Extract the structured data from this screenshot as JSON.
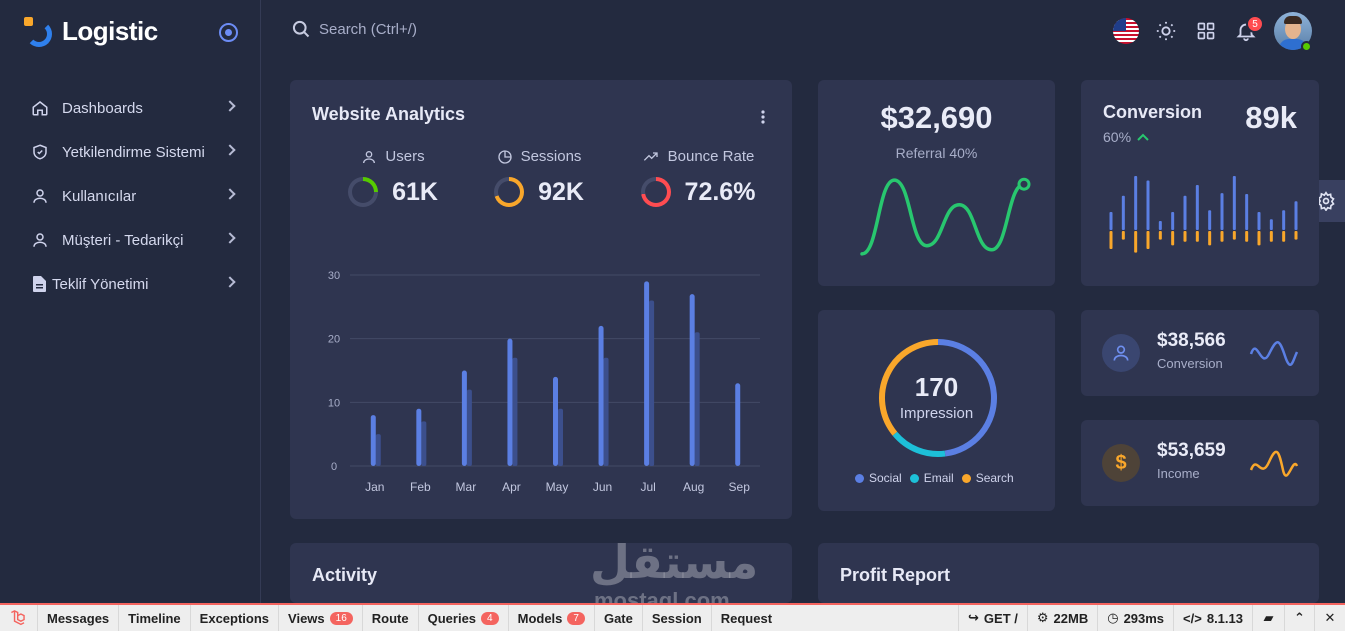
{
  "brand": {
    "name": "Logistic"
  },
  "sidebar": {
    "items": [
      {
        "label": "Dashboards",
        "icon": "home-icon"
      },
      {
        "label": "Yetkilendirme Sistemi",
        "icon": "shield-icon"
      },
      {
        "label": "Kullanıcılar",
        "icon": "user-icon"
      },
      {
        "label": "Müşteri - Tedarikçi",
        "icon": "user-icon"
      },
      {
        "label": "Teklif Yönetimi",
        "icon": "document-icon"
      }
    ]
  },
  "search": {
    "placeholder": "Search (Ctrl+/)"
  },
  "header": {
    "notification_count": "5"
  },
  "analytics": {
    "title": "Website Analytics",
    "stats": [
      {
        "label": "Users",
        "value": "61K",
        "color": "#56ca00",
        "percent": 0.25
      },
      {
        "label": "Sessions",
        "value": "92K",
        "color": "#f9a72b",
        "percent": 0.7
      },
      {
        "label": "Bounce Rate",
        "value": "72.6%",
        "color": "#ff4c51",
        "percent": 0.726
      }
    ]
  },
  "chart_data": [
    {
      "type": "bar",
      "categories": [
        "Jan",
        "Feb",
        "Mar",
        "Apr",
        "May",
        "Jun",
        "Jul",
        "Aug",
        "Sep"
      ],
      "series": [
        {
          "values": [
            8,
            9,
            15,
            20,
            14,
            22,
            29,
            27,
            13
          ],
          "color": "#5b7fe3"
        },
        {
          "values": [
            5,
            7,
            12,
            17,
            9,
            17,
            26,
            21,
            0
          ],
          "color": "#3c4f8c"
        }
      ],
      "yticks": [
        0,
        10,
        20,
        30
      ],
      "ylim": [
        0,
        30
      ],
      "grid": true
    },
    {
      "type": "line",
      "x": [
        0,
        1,
        2,
        3,
        4,
        5
      ],
      "values": [
        0.5,
        9.5,
        1.5,
        6.5,
        1,
        9
      ],
      "color": "#28c76f"
    },
    {
      "type": "bar",
      "categories": [
        "1",
        "2",
        "3",
        "4",
        "5",
        "6",
        "7",
        "8",
        "9",
        "10",
        "11",
        "12",
        "13",
        "14",
        "15",
        "16"
      ],
      "series": [
        {
          "values": [
            20,
            38,
            60,
            55,
            10,
            20,
            38,
            50,
            22,
            41,
            60,
            40,
            20,
            12,
            22,
            32
          ],
          "color": "#5b7fe3"
        },
        {
          "values": [
            -25,
            -12,
            -30,
            -25,
            -12,
            -20,
            -15,
            -15,
            -20,
            -15,
            -12,
            -15,
            -20,
            -15,
            -15,
            -12
          ],
          "color": "#f9a72b"
        }
      ]
    },
    {
      "type": "pie",
      "categories": [
        "Social",
        "Email",
        "Search"
      ],
      "values": [
        48,
        16,
        36
      ],
      "colors": [
        "#5b7fe3",
        "#1dc0d8",
        "#f9a72b"
      ]
    }
  ],
  "referral": {
    "value": "$32,690",
    "label": "Referral 40%"
  },
  "conversion": {
    "title": "Conversion",
    "value": "89k",
    "percent": "60%"
  },
  "impression": {
    "value": "170",
    "label": "Impression",
    "legend": [
      "Social",
      "Email",
      "Search"
    ]
  },
  "small_cards": [
    {
      "value": "$38,566",
      "label": "Conversion",
      "icon": "user-icon",
      "accent": "#5b7fe3"
    },
    {
      "value": "$53,659",
      "label": "Income",
      "icon": "dollar-icon",
      "accent": "#f9a72b"
    }
  ],
  "activity": {
    "title": "Activity"
  },
  "profit": {
    "title": "Profit Report"
  },
  "watermark": {
    "text": "مستقل",
    "sub": "mostaql.com"
  },
  "debugbar": {
    "items": [
      {
        "label": "Messages"
      },
      {
        "label": "Timeline"
      },
      {
        "label": "Exceptions"
      },
      {
        "label": "Views",
        "count": "16"
      },
      {
        "label": "Route"
      },
      {
        "label": "Queries",
        "count": "4"
      },
      {
        "label": "Models",
        "count": "7"
      },
      {
        "label": "Gate"
      },
      {
        "label": "Session"
      },
      {
        "label": "Request"
      }
    ],
    "method": "GET /",
    "memory": "22MB",
    "time": "293ms",
    "version": "8.1.13"
  }
}
